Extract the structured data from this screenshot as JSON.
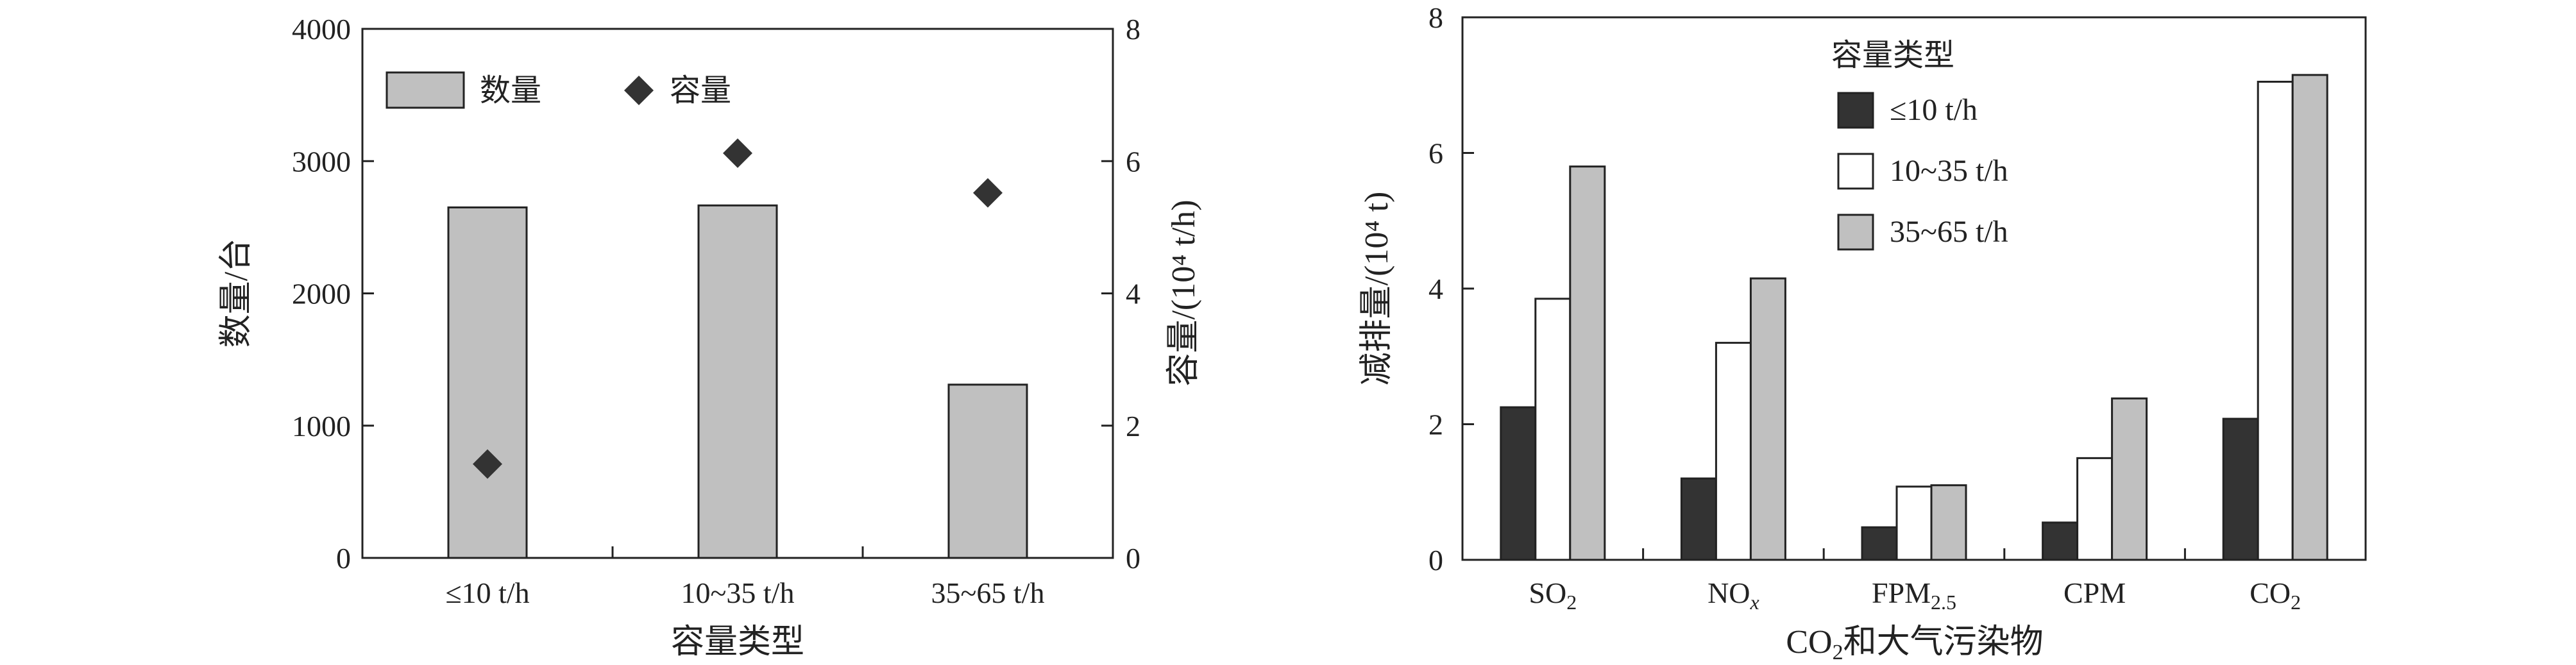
{
  "chart_data": [
    {
      "type": "bar",
      "categories": [
        "≤10 t/h",
        "10~35 t/h",
        "35~65 t/h"
      ],
      "xlabel": "容量类型",
      "ylabel": "数量/台",
      "y2label": "容量/(10⁴ t/h)",
      "ylim": [
        0,
        4000
      ],
      "yticks": [
        "0",
        "1000",
        "2000",
        "3000",
        "4000"
      ],
      "y2lim": [
        0,
        8
      ],
      "y2ticks": [
        "0",
        "2",
        "4",
        "6",
        "8"
      ],
      "series": [
        {
          "name": "数量",
          "type": "bar",
          "axis": "left",
          "values": [
            2650,
            2665,
            1310
          ],
          "color": "#c0c0c0"
        },
        {
          "name": "容量",
          "type": "scatter",
          "marker": "diamond",
          "axis": "right",
          "values": [
            1.42,
            6.12,
            5.52
          ],
          "color": "#333333"
        }
      ],
      "legend_position": "top-left",
      "grid": false
    },
    {
      "type": "bar",
      "categories": [
        "SO2",
        "NOx",
        "FPM2.5",
        "CPM",
        "CO2"
      ],
      "category_labels": [
        {
          "base": "SO",
          "sub": "2"
        },
        {
          "base": "NO",
          "sub": "x"
        },
        {
          "base": "FPM",
          "sub": "2.5"
        },
        {
          "base": "CPM",
          "sub": ""
        },
        {
          "base": "CO",
          "sub": "2"
        }
      ],
      "xlabel": {
        "base": "CO",
        "sub": "2",
        "rest": "和大气污染物"
      },
      "ylabel": "减排量/(10⁴ t)",
      "ylim": [
        0,
        8
      ],
      "yticks": [
        "0",
        "2",
        "4",
        "6",
        "8"
      ],
      "legend_title": "容量类型",
      "legend_position": "top-right",
      "grid": false,
      "series": [
        {
          "name": "≤10 t/h",
          "values": [
            2.25,
            1.2,
            0.48,
            0.55,
            2.08
          ],
          "color": "#333333"
        },
        {
          "name": "10~35 t/h",
          "values": [
            3.85,
            3.2,
            1.08,
            1.5,
            7.05
          ],
          "color": "#ffffff"
        },
        {
          "name": "35~65 t/h",
          "values": [
            5.8,
            4.15,
            1.1,
            2.38,
            7.15
          ],
          "color": "#c0c0c0"
        }
      ]
    }
  ]
}
